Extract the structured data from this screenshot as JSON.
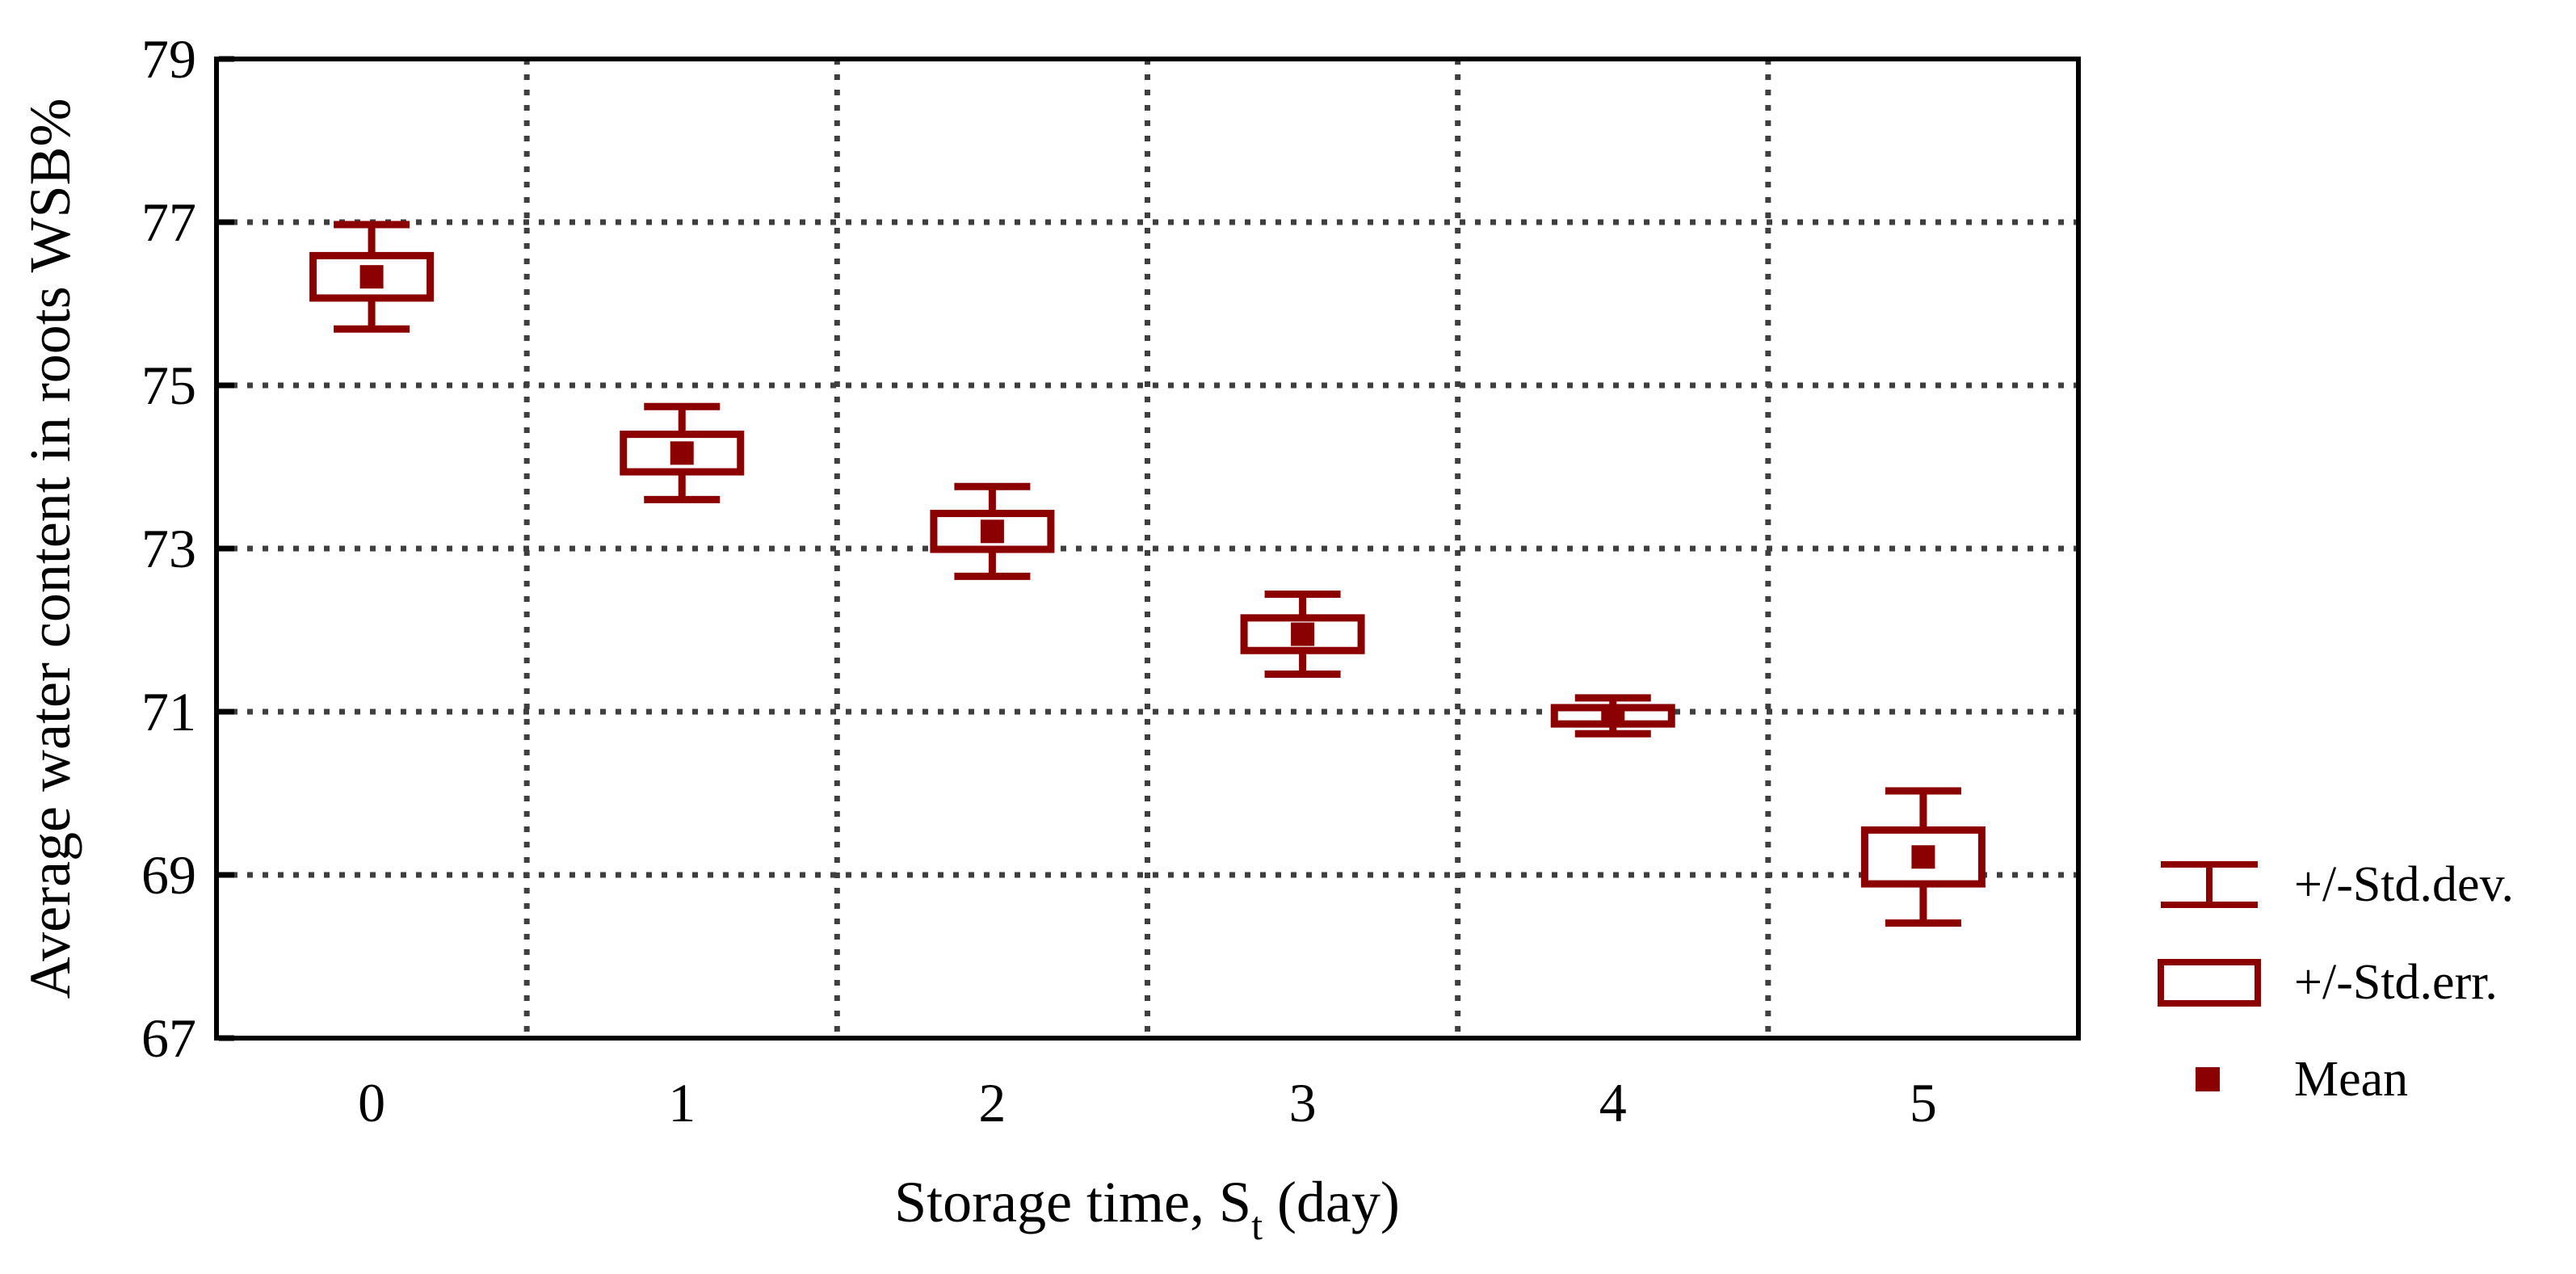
{
  "chart_data": {
    "type": "box-whisker",
    "title": "",
    "categories": [
      "0",
      "1",
      "2",
      "3",
      "4",
      "5"
    ],
    "series": [
      {
        "name": "Mean",
        "values": [
          76.33,
          74.17,
          73.21,
          71.95,
          70.95,
          69.22
        ]
      },
      {
        "name": "+/-Std.err.",
        "values": [
          0.26,
          0.23,
          0.22,
          0.2,
          0.1,
          0.33
        ]
      },
      {
        "name": "+/-Std.dev.",
        "values": [
          0.64,
          0.57,
          0.55,
          0.49,
          0.22,
          0.81
        ]
      }
    ],
    "mean": [
      76.33,
      74.17,
      73.21,
      71.95,
      70.95,
      69.22
    ],
    "std_err": [
      0.26,
      0.23,
      0.22,
      0.2,
      0.1,
      0.33
    ],
    "std_dev": [
      0.64,
      0.57,
      0.55,
      0.49,
      0.22,
      0.81
    ],
    "xlabel_parts": {
      "prefix": "Storage time, S",
      "subscript": "t",
      "suffix": " (day)"
    },
    "ylabel": "Average water content in roots WSB%",
    "ylim": [
      67,
      79
    ],
    "yticks": [
      79,
      77,
      75,
      73,
      71,
      69,
      67
    ],
    "grid": "dotted",
    "legend_position": "right-bottom",
    "legend": [
      {
        "symbol": "whisker",
        "label": "+/-Std.dev."
      },
      {
        "symbol": "box",
        "label": "+/-Std.err."
      },
      {
        "symbol": "square",
        "label": "Mean"
      }
    ],
    "colors": {
      "series": "#8B0000",
      "grid": "#3F3F3F",
      "axis": "#000000",
      "background": "#FFFFFF"
    }
  }
}
